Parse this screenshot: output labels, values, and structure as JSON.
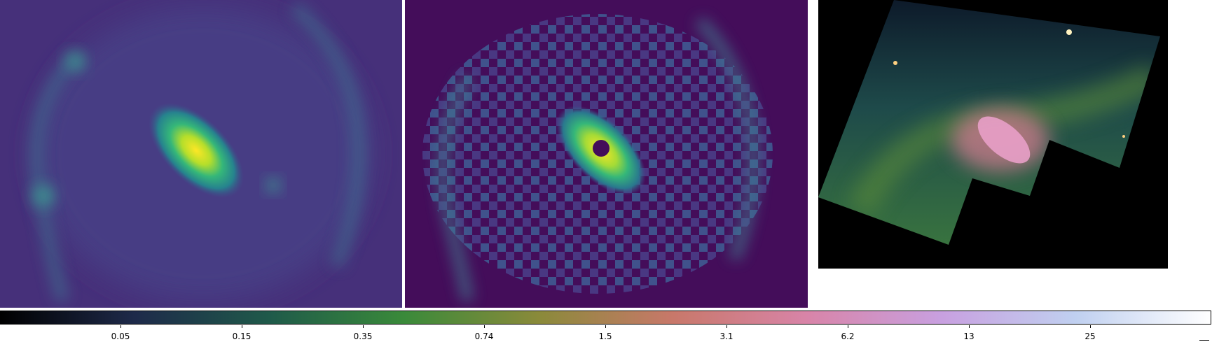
{
  "panels": [
    {
      "name": "smooth-map"
    },
    {
      "name": "masked-map"
    },
    {
      "name": "color-composite"
    }
  ],
  "colorbar": {
    "ticks": [
      "0.05",
      "0.15",
      "0.35",
      "0.74",
      "1.5",
      "3.1",
      "6.2",
      "13",
      "25"
    ],
    "colors": [
      "#000000",
      "#1e2a4a",
      "#1f5a4a",
      "#3a8a3a",
      "#8a8a3a",
      "#c8786a",
      "#d884a8",
      "#c8a0e0",
      "#c0d0f0",
      "#ffffff"
    ]
  }
}
